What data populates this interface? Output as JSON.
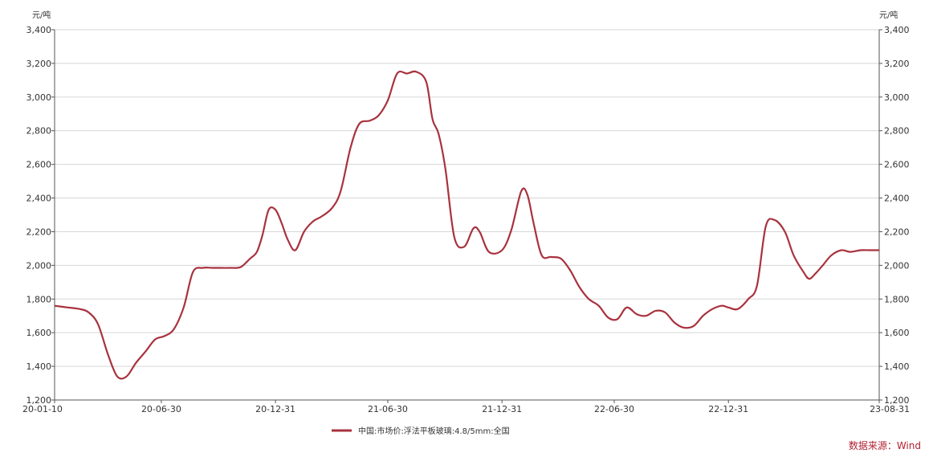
{
  "chart_data": {
    "type": "line",
    "unit_left": "元/吨",
    "unit_right": "元/吨",
    "ylim": [
      1200,
      3400
    ],
    "yticks": [
      1200,
      1400,
      1600,
      1800,
      2000,
      2200,
      2400,
      2600,
      2800,
      3000,
      3200,
      3400
    ],
    "ytick_labels": [
      "1,200",
      "1,400",
      "1,600",
      "1,800",
      "2,000",
      "2,200",
      "2,400",
      "2,600",
      "2,800",
      "3,000",
      "3,200",
      "3,400"
    ],
    "xlim": [
      "2020-01-10",
      "2023-08-31"
    ],
    "xticks": [
      "2020-01-10",
      "2020-06-30",
      "2020-12-31",
      "2021-06-30",
      "2021-12-31",
      "2022-06-30",
      "2022-12-31",
      "2023-08-31"
    ],
    "xtick_labels": [
      "20-01-10",
      "20-06-30",
      "20-12-31",
      "21-06-30",
      "21-12-31",
      "22-06-30",
      "22-12-31",
      "23-08-31"
    ],
    "grid": true,
    "legend_position": "bottom-center",
    "series": [
      {
        "name": "中国:市场价:浮法平板玻璃:4.8/5mm:全国",
        "color": "#a8323e",
        "x": [
          "2020-01-10",
          "2020-01-31",
          "2020-02-20",
          "2020-03-05",
          "2020-03-20",
          "2020-04-05",
          "2020-04-20",
          "2020-05-05",
          "2020-05-20",
          "2020-06-05",
          "2020-06-20",
          "2020-07-05",
          "2020-07-20",
          "2020-08-05",
          "2020-08-20",
          "2020-09-05",
          "2020-09-20",
          "2020-10-05",
          "2020-10-20",
          "2020-11-05",
          "2020-11-20",
          "2020-12-01",
          "2020-12-10",
          "2020-12-20",
          "2020-12-31",
          "2021-01-10",
          "2021-01-20",
          "2021-02-01",
          "2021-02-15",
          "2021-03-01",
          "2021-03-15",
          "2021-04-01",
          "2021-04-15",
          "2021-05-01",
          "2021-05-15",
          "2021-06-01",
          "2021-06-15",
          "2021-06-30",
          "2021-07-15",
          "2021-07-31",
          "2021-08-15",
          "2021-08-31",
          "2021-09-10",
          "2021-09-20",
          "2021-10-01",
          "2021-10-15",
          "2021-10-31",
          "2021-11-15",
          "2021-11-25",
          "2021-12-10",
          "2021-12-31",
          "2022-01-15",
          "2022-01-31",
          "2022-02-10",
          "2022-02-20",
          "2022-03-05",
          "2022-03-20",
          "2022-04-05",
          "2022-04-20",
          "2022-05-05",
          "2022-05-20",
          "2022-06-05",
          "2022-06-20",
          "2022-07-05",
          "2022-07-20",
          "2022-08-05",
          "2022-08-20",
          "2022-09-05",
          "2022-09-20",
          "2022-10-05",
          "2022-10-20",
          "2022-11-05",
          "2022-11-20",
          "2022-12-05",
          "2022-12-20",
          "2022-12-31",
          "2023-01-15",
          "2023-02-01",
          "2023-02-15",
          "2023-03-01",
          "2023-03-15",
          "2023-04-01",
          "2023-04-15",
          "2023-05-01",
          "2023-05-10",
          "2023-05-20",
          "2023-06-01",
          "2023-06-15",
          "2023-07-01",
          "2023-07-15",
          "2023-08-01",
          "2023-08-15",
          "2023-08-31"
        ],
        "values": [
          1760,
          1750,
          1740,
          1720,
          1650,
          1470,
          1340,
          1340,
          1420,
          1490,
          1560,
          1580,
          1620,
          1750,
          1960,
          1985,
          1985,
          1985,
          1985,
          1990,
          2040,
          2080,
          2180,
          2330,
          2330,
          2250,
          2150,
          2090,
          2200,
          2260,
          2290,
          2340,
          2440,
          2700,
          2840,
          2860,
          2890,
          2980,
          3140,
          3140,
          3150,
          3090,
          2870,
          2780,
          2570,
          2170,
          2110,
          2220,
          2200,
          2080,
          2090,
          2210,
          2440,
          2420,
          2250,
          2060,
          2050,
          2040,
          1970,
          1870,
          1800,
          1760,
          1690,
          1680,
          1750,
          1710,
          1700,
          1730,
          1720,
          1660,
          1630,
          1640,
          1700,
          1740,
          1760,
          1750,
          1740,
          1800,
          1880,
          2230,
          2270,
          2200,
          2060,
          1960,
          1920,
          1950,
          2000,
          2060,
          2090,
          2080,
          2090,
          2090,
          2090
        ]
      }
    ]
  },
  "source_label": "数据来源：Wind"
}
